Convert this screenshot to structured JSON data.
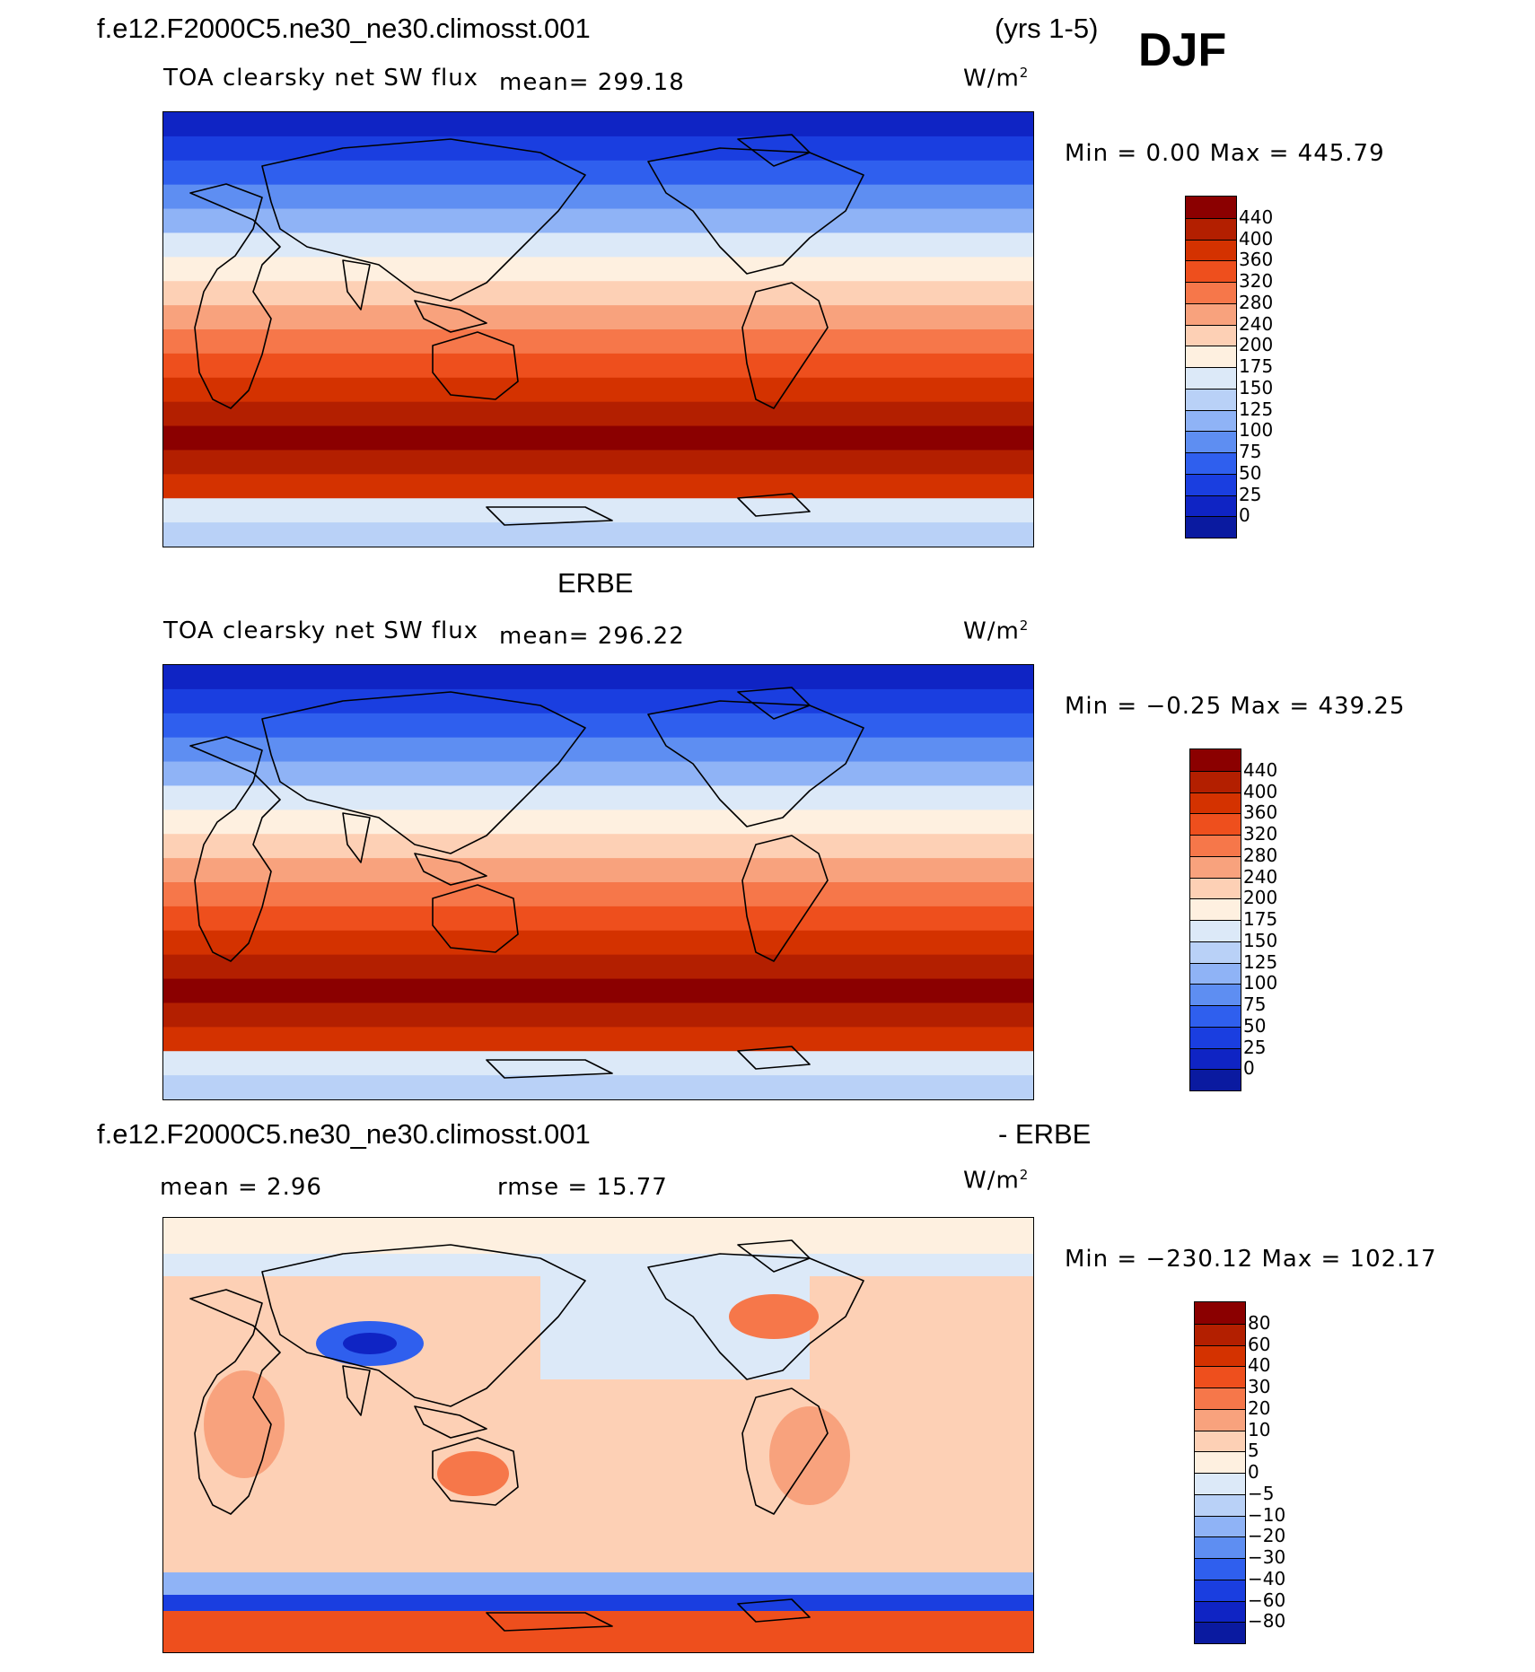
{
  "header": {
    "case_name": "f.e12.F2000C5.ne30_ne30.climosst.001",
    "years": "(yrs 1-5)",
    "season": "DJF"
  },
  "panels": [
    {
      "id": "model",
      "heading": "",
      "variable": "TOA clearsky net SW flux",
      "mean_label": "mean=  299.18",
      "units": "W/m",
      "units_sup": "2",
      "minmax": "Min  =    0.00  Max  =  445.79",
      "colorbar_labels": [
        "440",
        "400",
        "360",
        "320",
        "280",
        "240",
        "200",
        "175",
        "150",
        "125",
        "100",
        "75",
        "50",
        "25",
        "0"
      ],
      "colorbar_colors": [
        "#8b0000",
        "#b31f00",
        "#d43200",
        "#ee4f1d",
        "#f6774a",
        "#f8a27d",
        "#fdd0b5",
        "#fef0e0",
        "#dce9f8",
        "#b9d1f7",
        "#8fb3f6",
        "#5e8ef2",
        "#2f5fee",
        "#1a3ee0",
        "#0f24c4",
        "#0a1aa0"
      ],
      "field": "abs"
    },
    {
      "id": "obs",
      "heading": "ERBE",
      "variable": "TOA clearsky net SW flux",
      "mean_label": "mean=  296.22",
      "units": "W/m",
      "units_sup": "2",
      "minmax": "Min  =   −0.25  Max  =  439.25",
      "colorbar_labels": [
        "440",
        "400",
        "360",
        "320",
        "280",
        "240",
        "200",
        "175",
        "150",
        "125",
        "100",
        "75",
        "50",
        "25",
        "0"
      ],
      "colorbar_colors": [
        "#8b0000",
        "#b31f00",
        "#d43200",
        "#ee4f1d",
        "#f6774a",
        "#f8a27d",
        "#fdd0b5",
        "#fef0e0",
        "#dce9f8",
        "#b9d1f7",
        "#8fb3f6",
        "#5e8ef2",
        "#2f5fee",
        "#1a3ee0",
        "#0f24c4",
        "#0a1aa0"
      ],
      "field": "abs"
    },
    {
      "id": "diff",
      "heading_left": "f.e12.F2000C5.ne30_ne30.climosst.001",
      "heading_right": "- ERBE",
      "mean_label": "mean  =     2.96",
      "rmse_label": "rmse  =    15.77",
      "units": "W/m",
      "units_sup": "2",
      "minmax": "Min  = −230.12  Max  =  102.17",
      "colorbar_labels": [
        "80",
        "60",
        "40",
        "30",
        "20",
        "10",
        "5",
        "0",
        "−5",
        "−10",
        "−20",
        "−30",
        "−40",
        "−60",
        "−80"
      ],
      "colorbar_colors": [
        "#8b0000",
        "#b31f00",
        "#d43200",
        "#ee4f1d",
        "#f6774a",
        "#f8a27d",
        "#fdd0b5",
        "#fef0e0",
        "#dce9f8",
        "#b9d1f7",
        "#8fb3f6",
        "#5e8ef2",
        "#2f5fee",
        "#1a3ee0",
        "#0f24c4",
        "#0a1aa0"
      ],
      "field": "diff"
    }
  ],
  "map_colors": {
    "abs_bands_north_to_south": [
      "#0f24c4",
      "#1a3ee0",
      "#2f5fee",
      "#5e8ef2",
      "#8fb3f6",
      "#dce9f8",
      "#fef0e0",
      "#fdd0b5",
      "#f8a27d",
      "#f6774a",
      "#ee4f1d",
      "#d43200",
      "#b31f00",
      "#8b0000",
      "#b31f00",
      "#d43200",
      "#dce9f8",
      "#b9d1f7"
    ],
    "diff_base": "#fdd0b5",
    "coast": "#000000"
  }
}
